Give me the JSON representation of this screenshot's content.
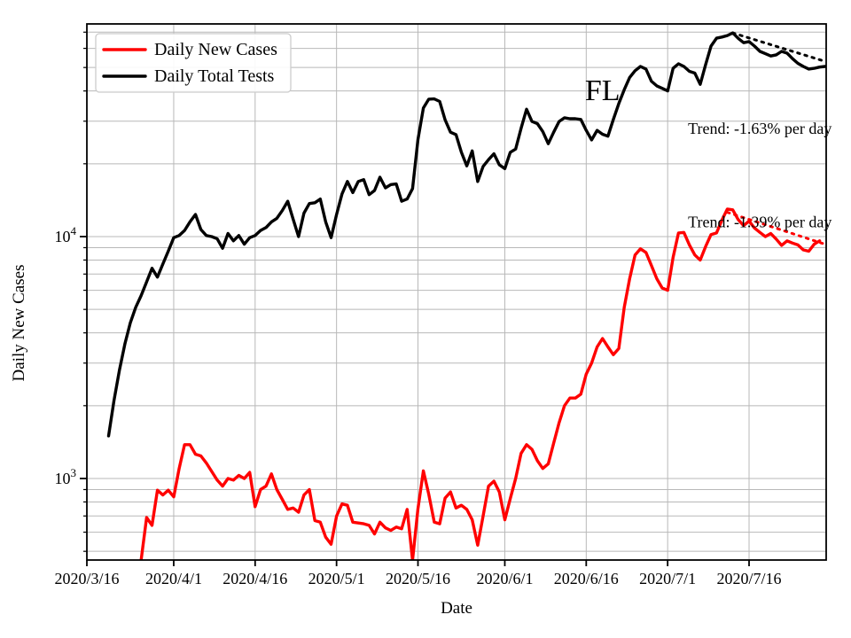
{
  "chart_data": {
    "type": "line",
    "title": "",
    "xlabel": "Date",
    "ylabel": "Daily New Cases",
    "grid": true,
    "legend_position": "upper-left",
    "colors": {
      "cases": "#ff0000",
      "tests": "#000000",
      "gridline": "#b8b8b8",
      "frame": "#000000",
      "legend_border": "#cccccc",
      "background": "#ffffff"
    },
    "x_axis": {
      "tick_labels": [
        "2020/3/16",
        "2020/4/1",
        "2020/4/16",
        "2020/5/1",
        "2020/5/16",
        "2020/6/1",
        "2020/6/16",
        "2020/7/1",
        "2020/7/16"
      ],
      "range": [
        "2020/3/16",
        "2020/7/30"
      ]
    },
    "y_axis": {
      "scale": "log",
      "major_ticks": [
        {
          "value": 1000,
          "base": "10",
          "exp": "3"
        },
        {
          "value": 10000,
          "base": "10",
          "exp": "4"
        }
      ],
      "minor_gridline_values": [
        500,
        600,
        700,
        800,
        900,
        2000,
        3000,
        4000,
        5000,
        6000,
        7000,
        8000,
        9000,
        20000,
        30000,
        40000,
        50000,
        60000,
        70000
      ],
      "range_approx": [
        460,
        76000
      ]
    },
    "annotations": [
      {
        "id": "state",
        "text": "FL",
        "date": "6/19",
        "value": 40000,
        "color": "#000000",
        "size": "large"
      },
      {
        "id": "trend-tests",
        "text": "Trend: -1.63% per day",
        "date": "7/18",
        "value": 28000,
        "color": "#000000",
        "size": "small"
      },
      {
        "id": "trend-cases",
        "text": "Trend: -1.39% per day",
        "date": "7/18",
        "value": 11500,
        "color": "#000000",
        "size": "small"
      }
    ],
    "legend": {
      "entries": [
        {
          "label": "Daily New Cases",
          "color": "#ff0000"
        },
        {
          "label": "Daily Total Tests",
          "color": "#000000"
        }
      ]
    },
    "trend_lines": [
      {
        "series": "Daily Total Tests",
        "rate": "-1.63% per day",
        "style": "dotted",
        "color": "#000000",
        "points": [
          [
            "7/13",
            69500
          ],
          [
            "7/30",
            53000
          ]
        ]
      },
      {
        "series": "Daily New Cases",
        "rate": "-1.39% per day",
        "style": "dotted",
        "color": "#ff0000",
        "points": [
          [
            "7/12",
            12600
          ],
          [
            "7/30",
            9300
          ]
        ]
      }
    ],
    "series": [
      {
        "name": "Daily New Cases",
        "color": "#ff0000",
        "points": [
          [
            "3/26",
            460
          ],
          [
            "3/27",
            690
          ],
          [
            "3/28",
            640
          ],
          [
            "3/29",
            895
          ],
          [
            "3/30",
            855
          ],
          [
            "3/31",
            895
          ],
          [
            "4/1",
            840
          ],
          [
            "4/2",
            1100
          ],
          [
            "4/3",
            1380
          ],
          [
            "4/4",
            1380
          ],
          [
            "4/5",
            1260
          ],
          [
            "4/6",
            1240
          ],
          [
            "4/7",
            1160
          ],
          [
            "4/8",
            1070
          ],
          [
            "4/9",
            985
          ],
          [
            "4/10",
            930
          ],
          [
            "4/11",
            1000
          ],
          [
            "4/12",
            985
          ],
          [
            "4/13",
            1030
          ],
          [
            "4/14",
            1000
          ],
          [
            "4/15",
            1060
          ],
          [
            "4/16",
            765
          ],
          [
            "4/17",
            900
          ],
          [
            "4/18",
            930
          ],
          [
            "4/19",
            1045
          ],
          [
            "4/20",
            900
          ],
          [
            "4/21",
            820
          ],
          [
            "4/22",
            745
          ],
          [
            "4/23",
            755
          ],
          [
            "4/24",
            725
          ],
          [
            "4/25",
            855
          ],
          [
            "4/26",
            900
          ],
          [
            "4/27",
            670
          ],
          [
            "4/28",
            660
          ],
          [
            "4/29",
            572
          ],
          [
            "4/30",
            535
          ],
          [
            "5/1",
            700
          ],
          [
            "5/2",
            785
          ],
          [
            "5/3",
            775
          ],
          [
            "5/4",
            660
          ],
          [
            "5/5",
            655
          ],
          [
            "5/6",
            650
          ],
          [
            "5/7",
            640
          ],
          [
            "5/8",
            590
          ],
          [
            "5/9",
            660
          ],
          [
            "5/10",
            625
          ],
          [
            "5/11",
            610
          ],
          [
            "5/12",
            630
          ],
          [
            "5/13",
            620
          ],
          [
            "5/14",
            745
          ],
          [
            "5/15",
            460
          ],
          [
            "5/16",
            750
          ],
          [
            "5/17",
            1075
          ],
          [
            "5/18",
            860
          ],
          [
            "5/19",
            660
          ],
          [
            "5/20",
            650
          ],
          [
            "5/21",
            830
          ],
          [
            "5/22",
            880
          ],
          [
            "5/23",
            755
          ],
          [
            "5/24",
            775
          ],
          [
            "5/25",
            745
          ],
          [
            "5/26",
            675
          ],
          [
            "5/27",
            530
          ],
          [
            "5/28",
            700
          ],
          [
            "5/29",
            930
          ],
          [
            "5/30",
            975
          ],
          [
            "5/31",
            880
          ],
          [
            "6/1",
            675
          ],
          [
            "6/2",
            825
          ],
          [
            "6/3",
            1000
          ],
          [
            "6/4",
            1270
          ],
          [
            "6/5",
            1380
          ],
          [
            "6/6",
            1320
          ],
          [
            "6/7",
            1185
          ],
          [
            "6/8",
            1100
          ],
          [
            "6/9",
            1150
          ],
          [
            "6/10",
            1400
          ],
          [
            "6/11",
            1700
          ],
          [
            "6/12",
            2000
          ],
          [
            "6/13",
            2150
          ],
          [
            "6/14",
            2150
          ],
          [
            "6/15",
            2230
          ],
          [
            "6/16",
            2700
          ],
          [
            "6/17",
            3000
          ],
          [
            "6/18",
            3500
          ],
          [
            "6/19",
            3790
          ],
          [
            "6/20",
            3500
          ],
          [
            "6/21",
            3250
          ],
          [
            "6/22",
            3450
          ],
          [
            "6/23",
            5100
          ],
          [
            "6/24",
            6700
          ],
          [
            "6/25",
            8400
          ],
          [
            "6/26",
            8900
          ],
          [
            "6/27",
            8600
          ],
          [
            "6/28",
            7600
          ],
          [
            "6/29",
            6700
          ],
          [
            "6/30",
            6130
          ],
          [
            "7/1",
            6000
          ],
          [
            "7/2",
            8200
          ],
          [
            "7/3",
            10350
          ],
          [
            "7/4",
            10400
          ],
          [
            "7/5",
            9240
          ],
          [
            "7/6",
            8400
          ],
          [
            "7/7",
            8000
          ],
          [
            "7/8",
            9100
          ],
          [
            "7/9",
            10200
          ],
          [
            "7/10",
            10350
          ],
          [
            "7/11",
            11700
          ],
          [
            "7/12",
            13000
          ],
          [
            "7/13",
            12900
          ],
          [
            "7/14",
            11750
          ],
          [
            "7/15",
            11100
          ],
          [
            "7/16",
            11600
          ],
          [
            "7/17",
            10850
          ],
          [
            "7/18",
            10400
          ],
          [
            "7/19",
            10000
          ],
          [
            "7/20",
            10300
          ],
          [
            "7/21",
            9770
          ],
          [
            "7/22",
            9200
          ],
          [
            "7/23",
            9600
          ],
          [
            "7/24",
            9400
          ],
          [
            "7/25",
            9240
          ],
          [
            "7/26",
            8810
          ],
          [
            "7/27",
            8700
          ],
          [
            "7/28",
            9300
          ],
          [
            "7/29",
            9600
          ]
        ]
      },
      {
        "name": "Daily Total Tests",
        "color": "#000000",
        "points": [
          [
            "3/20",
            1500
          ],
          [
            "3/21",
            2100
          ],
          [
            "3/22",
            2800
          ],
          [
            "3/23",
            3600
          ],
          [
            "3/24",
            4400
          ],
          [
            "3/25",
            5100
          ],
          [
            "3/26",
            5700
          ],
          [
            "3/27",
            6500
          ],
          [
            "3/28",
            7400
          ],
          [
            "3/29",
            6800
          ],
          [
            "3/30",
            7700
          ],
          [
            "3/31",
            8700
          ],
          [
            "4/1",
            9900
          ],
          [
            "4/2",
            10100
          ],
          [
            "4/3",
            10600
          ],
          [
            "4/4",
            11500
          ],
          [
            "4/5",
            12350
          ],
          [
            "4/6",
            10700
          ],
          [
            "4/7",
            10100
          ],
          [
            "4/8",
            10000
          ],
          [
            "4/9",
            9800
          ],
          [
            "4/10",
            8950
          ],
          [
            "4/11",
            10300
          ],
          [
            "4/12",
            9600
          ],
          [
            "4/13",
            10100
          ],
          [
            "4/14",
            9300
          ],
          [
            "4/15",
            9900
          ],
          [
            "4/16",
            10100
          ],
          [
            "4/17",
            10600
          ],
          [
            "4/18",
            10900
          ],
          [
            "4/19",
            11500
          ],
          [
            "4/20",
            11900
          ],
          [
            "4/21",
            12800
          ],
          [
            "4/22",
            14000
          ],
          [
            "4/23",
            11800
          ],
          [
            "4/24",
            10000
          ],
          [
            "4/25",
            12500
          ],
          [
            "4/26",
            13700
          ],
          [
            "4/27",
            13800
          ],
          [
            "4/28",
            14300
          ],
          [
            "4/29",
            11500
          ],
          [
            "4/30",
            9900
          ],
          [
            "5/1",
            12350
          ],
          [
            "5/2",
            15000
          ],
          [
            "5/3",
            16900
          ],
          [
            "5/4",
            15200
          ],
          [
            "5/5",
            16900
          ],
          [
            "5/6",
            17200
          ],
          [
            "5/7",
            14900
          ],
          [
            "5/8",
            15500
          ],
          [
            "5/9",
            17600
          ],
          [
            "5/10",
            15900
          ],
          [
            "5/11",
            16400
          ],
          [
            "5/12",
            16500
          ],
          [
            "5/13",
            14000
          ],
          [
            "5/14",
            14300
          ],
          [
            "5/15",
            15800
          ],
          [
            "5/16",
            25200
          ],
          [
            "5/17",
            34000
          ],
          [
            "5/18",
            37000
          ],
          [
            "5/19",
            37100
          ],
          [
            "5/20",
            36200
          ],
          [
            "5/21",
            30400
          ],
          [
            "5/22",
            27000
          ],
          [
            "5/23",
            26400
          ],
          [
            "5/24",
            22300
          ],
          [
            "5/25",
            19600
          ],
          [
            "5/26",
            22600
          ],
          [
            "5/27",
            16900
          ],
          [
            "5/28",
            19500
          ],
          [
            "5/29",
            20800
          ],
          [
            "5/30",
            22000
          ],
          [
            "5/31",
            19800
          ],
          [
            "6/1",
            19100
          ],
          [
            "6/2",
            22300
          ],
          [
            "6/3",
            23000
          ],
          [
            "6/4",
            28000
          ],
          [
            "6/5",
            33600
          ],
          [
            "6/6",
            29900
          ],
          [
            "6/7",
            29300
          ],
          [
            "6/8",
            27200
          ],
          [
            "6/9",
            24200
          ],
          [
            "6/10",
            27000
          ],
          [
            "6/11",
            29900
          ],
          [
            "6/12",
            31000
          ],
          [
            "6/13",
            30700
          ],
          [
            "6/14",
            30700
          ],
          [
            "6/15",
            30500
          ],
          [
            "6/16",
            27500
          ],
          [
            "6/17",
            25100
          ],
          [
            "6/18",
            27500
          ],
          [
            "6/19",
            26500
          ],
          [
            "6/20",
            26000
          ],
          [
            "6/21",
            30500
          ],
          [
            "6/22",
            35500
          ],
          [
            "6/23",
            40500
          ],
          [
            "6/24",
            45500
          ],
          [
            "6/25",
            48500
          ],
          [
            "6/26",
            50500
          ],
          [
            "6/27",
            49300
          ],
          [
            "6/28",
            43900
          ],
          [
            "6/29",
            42000
          ],
          [
            "6/30",
            41000
          ],
          [
            "7/1",
            40000
          ],
          [
            "7/2",
            49600
          ],
          [
            "7/3",
            51800
          ],
          [
            "7/4",
            50500
          ],
          [
            "7/5",
            48200
          ],
          [
            "7/6",
            47400
          ],
          [
            "7/7",
            42600
          ],
          [
            "7/8",
            51400
          ],
          [
            "7/9",
            61300
          ],
          [
            "7/10",
            66100
          ],
          [
            "7/11",
            66800
          ],
          [
            "7/12",
            67800
          ],
          [
            "7/13",
            69500
          ],
          [
            "7/14",
            66000
          ],
          [
            "7/15",
            63300
          ],
          [
            "7/16",
            64000
          ],
          [
            "7/17",
            61300
          ],
          [
            "7/18",
            58300
          ],
          [
            "7/19",
            57000
          ],
          [
            "7/20",
            55800
          ],
          [
            "7/21",
            56400
          ],
          [
            "7/22",
            58300
          ],
          [
            "7/23",
            57300
          ],
          [
            "7/24",
            54400
          ],
          [
            "7/25",
            52000
          ],
          [
            "7/26",
            50500
          ],
          [
            "7/27",
            49300
          ],
          [
            "7/28",
            49600
          ],
          [
            "7/29",
            50200
          ],
          [
            "7/30",
            50500
          ]
        ]
      }
    ]
  }
}
